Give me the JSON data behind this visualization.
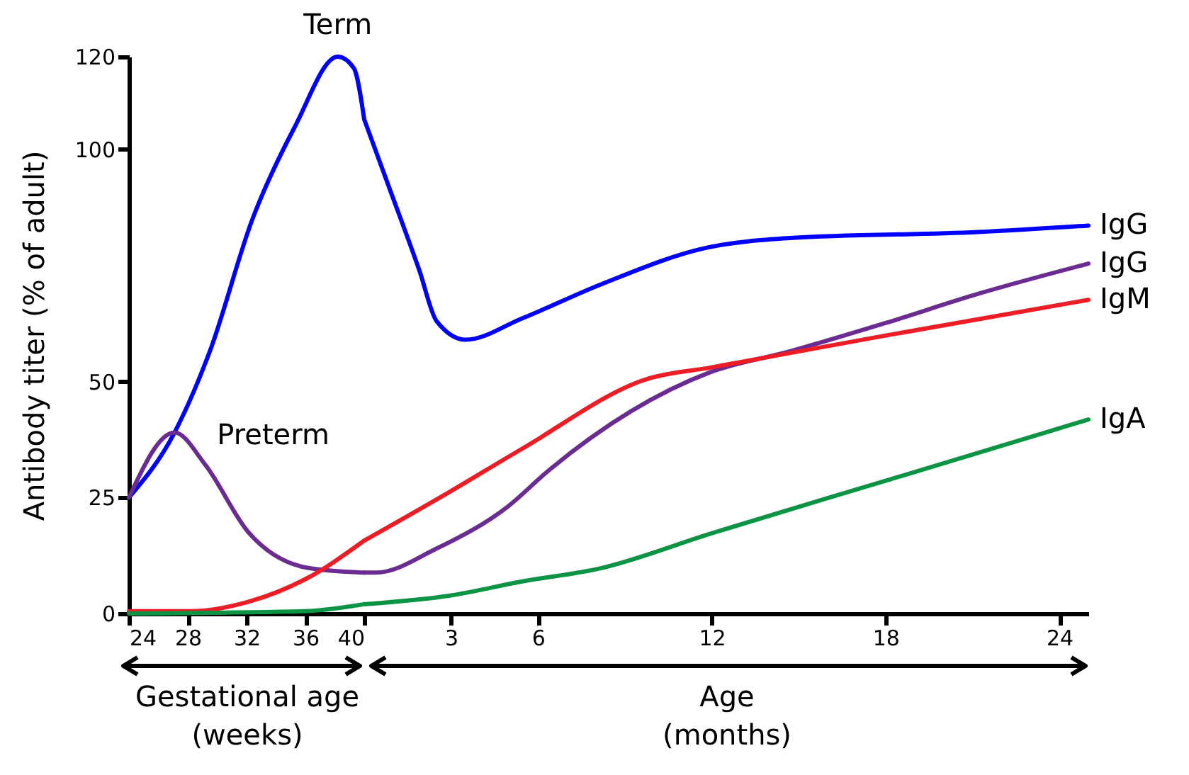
{
  "chart_data": [
    {
      "type": "line",
      "ylabel": "Antibody titer (% of adult)",
      "xlabel": "Gestational age (weeks)",
      "xlim": [
        24,
        40
      ],
      "xticks": [
        24,
        28,
        32,
        36,
        40
      ],
      "ylim": [
        0,
        120
      ],
      "yticks": [
        0,
        25,
        50,
        100,
        120
      ],
      "annotations": [
        {
          "text": "Term",
          "x": 38.2,
          "y": 120
        },
        {
          "text": "Preterm",
          "x": 27.1,
          "y": 39
        }
      ],
      "series": [
        {
          "color": "#0000ff",
          "x": [
            24,
            27.1,
            29.5,
            32.4,
            35.3,
            38.2,
            39.3,
            40
          ],
          "values": [
            25,
            39,
            56.5,
            85,
            105,
            120,
            117.5,
            106.5
          ]
        },
        {
          "color": "#6a2c91",
          "x": [
            24,
            27.1,
            29.2,
            32.1,
            36.2,
            40
          ],
          "values": [
            25,
            39,
            32,
            17.6,
            9.8,
            8.8
          ]
        },
        {
          "color": "#ee1c24",
          "x": [
            24,
            28.2,
            32.1,
            36,
            40
          ],
          "values": [
            0.5,
            0.5,
            2.5,
            7.4,
            15.7
          ]
        },
        {
          "color": "#0a9444",
          "x": [
            24,
            36,
            40
          ],
          "values": [
            0,
            0.5,
            2
          ]
        }
      ]
    },
    {
      "type": "line",
      "xlabel": "Age (months)",
      "xlim": [
        0,
        25
      ],
      "xticks": [
        3,
        6,
        12,
        18,
        24
      ],
      "ylim": [
        0,
        120
      ],
      "tick_labels": "x",
      "series": [
        {
          "name": "IgG",
          "color": "#0000ff",
          "x": [
            0,
            0.85,
            1.9,
            2.5,
            3.5,
            5.45,
            8.2,
            11.8,
            14.7,
            21.2,
            25
          ],
          "values": [
            106.5,
            92,
            74,
            63,
            59,
            63.6,
            71,
            78.8,
            80.9,
            82.2,
            83.6
          ]
        },
        {
          "name": "IgG",
          "color": "#6a2c91",
          "x": [
            0,
            0.4,
            2.5,
            4.95,
            6.4,
            11.95,
            14.7,
            18,
            21.2,
            25
          ],
          "values": [
            8.8,
            8.8,
            14,
            23,
            31,
            52,
            56.5,
            62.6,
            68.9,
            75.4
          ]
        },
        {
          "name": "IgM",
          "color": "#ee1c24",
          "x": [
            0,
            3,
            5.45,
            9.85,
            11.95,
            18,
            25
          ],
          "values": [
            15.7,
            26.4,
            35.5,
            50.7,
            53,
            59.9,
            67.6
          ]
        },
        {
          "name": "IgA",
          "color": "#0a9444",
          "x": [
            0,
            3,
            5.45,
            8.2,
            11.95,
            18,
            25
          ],
          "values": [
            2,
            3.9,
            6.9,
            9.8,
            17.2,
            28.6,
            41.8
          ]
        }
      ]
    }
  ]
}
